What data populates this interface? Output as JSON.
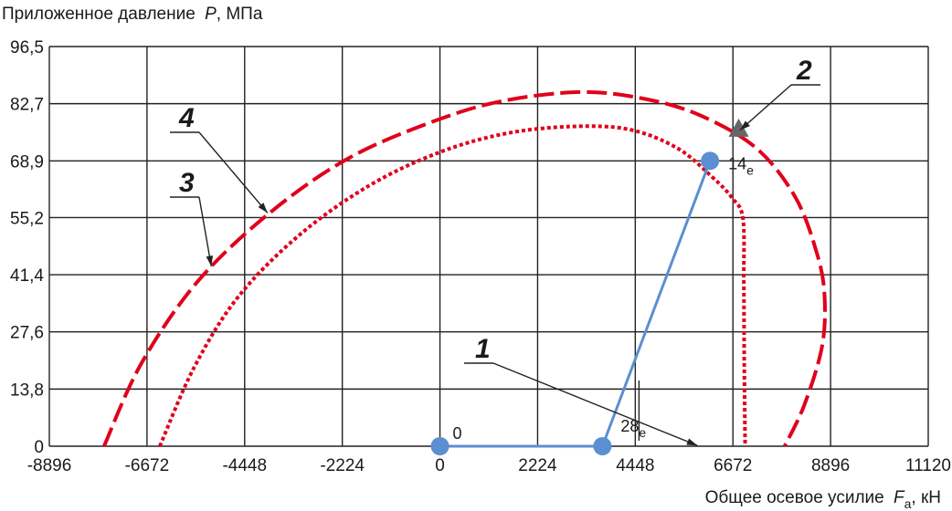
{
  "chart_data": {
    "type": "line",
    "ylabel": "Приложенное давление",
    "ylabel_var": "P",
    "ylabel_unit": ", МПа",
    "xlabel": "Общее осевое усилие",
    "xlabel_var": "F",
    "xlabel_sub": "a",
    "xlabel_unit": ", кН",
    "xlim": [
      -8896,
      11120
    ],
    "ylim": [
      0,
      96.5
    ],
    "x_ticks": [
      -8896,
      -6672,
      -4448,
      -2224,
      0,
      2224,
      4448,
      6672,
      8896,
      11120
    ],
    "x_tick_labels": [
      "-8896",
      "-6672",
      "-4448",
      "-2224",
      "0",
      "2224",
      "4448",
      "6672",
      "8896",
      "11120"
    ],
    "y_ticks": [
      0,
      13.8,
      27.6,
      41.4,
      55.2,
      68.9,
      82.7,
      96.5
    ],
    "y_tick_labels": [
      "0",
      "13,8",
      "27,6",
      "41,4",
      "55,2",
      "68,9",
      "82,7",
      "96,5"
    ],
    "grid": true,
    "colors": {
      "load_path": "#5b8fd1",
      "envelope": "#e0001b",
      "marker2": "#666666",
      "grid": "#222222"
    },
    "series": [
      {
        "name": "1",
        "style": "solid",
        "color": "#5b8fd1",
        "points": [
          {
            "x": 0,
            "y": 0,
            "label": "0"
          },
          {
            "x": 3700,
            "y": 0,
            "label": "28",
            "label_sub": "e"
          },
          {
            "x": 6150,
            "y": 68.9,
            "label": "14",
            "label_sub": "e"
          }
        ]
      },
      {
        "name": "2",
        "style": "marker",
        "marker": "triangle",
        "color": "#666666",
        "points": [
          {
            "x": 6720,
            "y": 75.6
          }
        ]
      },
      {
        "name": "3",
        "style": "dotted",
        "color": "#e0001b",
        "points": [
          {
            "x": -6380,
            "y": 0
          },
          {
            "x": -5600,
            "y": 19
          },
          {
            "x": -4600,
            "y": 36
          },
          {
            "x": -3200,
            "y": 51
          },
          {
            "x": -1600,
            "y": 63
          },
          {
            "x": 0,
            "y": 71
          },
          {
            "x": 1500,
            "y": 75.5
          },
          {
            "x": 3000,
            "y": 77.2
          },
          {
            "x": 4300,
            "y": 76.5
          },
          {
            "x": 5400,
            "y": 72
          },
          {
            "x": 6200,
            "y": 65
          },
          {
            "x": 6650,
            "y": 60
          },
          {
            "x": 6900,
            "y": 55
          },
          {
            "x": 6920,
            "y": 40
          },
          {
            "x": 6930,
            "y": 20
          },
          {
            "x": 6950,
            "y": 0
          }
        ]
      },
      {
        "name": "4",
        "style": "dashed",
        "color": "#e0001b",
        "points": [
          {
            "x": -7650,
            "y": 0
          },
          {
            "x": -6800,
            "y": 20
          },
          {
            "x": -5500,
            "y": 40
          },
          {
            "x": -3800,
            "y": 57
          },
          {
            "x": -2000,
            "y": 70
          },
          {
            "x": 0,
            "y": 79
          },
          {
            "x": 1500,
            "y": 83.5
          },
          {
            "x": 3200,
            "y": 85.5
          },
          {
            "x": 4600,
            "y": 84
          },
          {
            "x": 5900,
            "y": 80
          },
          {
            "x": 7200,
            "y": 72
          },
          {
            "x": 8100,
            "y": 60
          },
          {
            "x": 8600,
            "y": 46
          },
          {
            "x": 8760,
            "y": 36
          },
          {
            "x": 8700,
            "y": 24
          },
          {
            "x": 8300,
            "y": 10
          },
          {
            "x": 7850,
            "y": 0
          }
        ]
      }
    ],
    "callouts": [
      {
        "text": "1",
        "target": {
          "x": 5900,
          "y": 0
        }
      },
      {
        "text": "2",
        "target": {
          "x": 6800,
          "y": 76
        }
      },
      {
        "text": "3",
        "target": {
          "x": -5200,
          "y": 43
        }
      },
      {
        "text": "4",
        "target": {
          "x": -3900,
          "y": 56
        }
      }
    ]
  }
}
